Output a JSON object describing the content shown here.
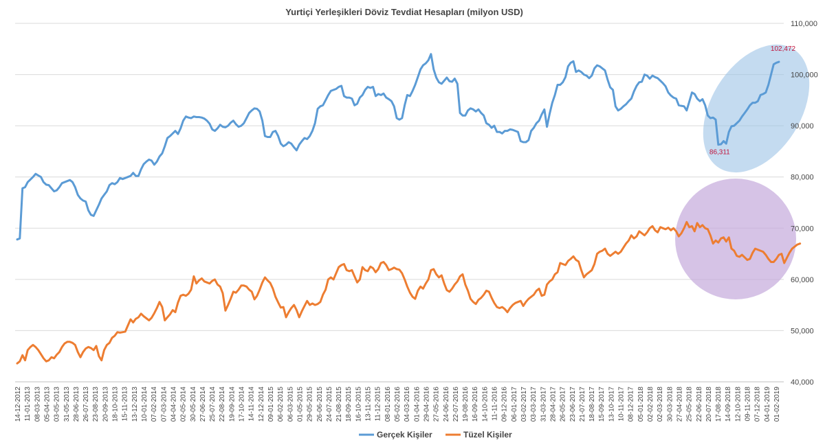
{
  "chart_data": {
    "type": "line",
    "title": "Yurtiçi Yerleşikleri Döviz Tevdiat Hesapları (milyon USD)",
    "xlabel": "",
    "ylabel": "",
    "ylim": [
      40000,
      110000
    ],
    "y_ticks": [
      40000,
      50000,
      60000,
      70000,
      80000,
      90000,
      100000,
      110000
    ],
    "y_tick_labels": [
      "40,000",
      "50,000",
      "60,000",
      "70,000",
      "80,000",
      "90,000",
      "100,000",
      "110,000"
    ],
    "y_axis_side": "right",
    "grid": "horizontal",
    "legend_position": "bottom",
    "x_tick_labels": [
      "14-12-2012",
      "11-01-2013",
      "08-03-2013",
      "05-04-2013",
      "03-05-2013",
      "31-05-2013",
      "28-06-2013",
      "26-07-2013",
      "23-08-2013",
      "20-09-2013",
      "18-10-2013",
      "15-11-2013",
      "13-12-2013",
      "10-01-2014",
      "07-02-2014",
      "07-03-2014",
      "04-04-2014",
      "02-05-2014",
      "30-05-2014",
      "27-06-2014",
      "25-07-2014",
      "22-08-2014",
      "19-09-2014",
      "17-10-2014",
      "14-11-2014",
      "12-12-2014",
      "09-01-2015",
      "06-02-2015",
      "06-03-2015",
      "01-05-2015",
      "29-05-2015",
      "26-06-2015",
      "24-07-2015",
      "21-08-2015",
      "18-09-2015",
      "16-10-2015",
      "13-11-2015",
      "11-12-2015",
      "08-01-2016",
      "05-02-2016",
      "04-03-2016",
      "01-04-2016",
      "29-04-2016",
      "27-05-2016",
      "24-06-2016",
      "22-07-2016",
      "19-08-2016",
      "16-09-2016",
      "14-10-2016",
      "11-11-2016",
      "09-12-2016",
      "06-01-2017",
      "03-02-2017",
      "03-03-2017",
      "31-03-2017",
      "28-04-2017",
      "26-05-2017",
      "23-06-2017",
      "21-07-2017",
      "18-08-2017",
      "15-09-2017",
      "13-10-2017",
      "10-11-2017",
      "08-12-2017",
      "05-01-2018",
      "02-02-2018",
      "02-03-2018",
      "30-03-2018",
      "27-04-2018",
      "25-05-2018",
      "22-06-2018",
      "20-07-2018",
      "17-08-2018",
      "14-09-2018",
      "12-10-2018",
      "09-11-2018",
      "07-12-2018",
      "04-01-2019",
      "01-02-2019"
    ],
    "series": [
      {
        "name": "Gerçek Kişiler",
        "color": "#5b9bd5",
        "values": [
          67800,
          68000,
          77800,
          78000,
          79000,
          79500,
          80000,
          80600,
          80300,
          80000,
          79000,
          78500,
          78400,
          77800,
          77200,
          77400,
          78000,
          78800,
          79000,
          79200,
          79400,
          79000,
          78000,
          76500,
          75800,
          75400,
          75200,
          73500,
          72600,
          72400,
          73500,
          74600,
          75800,
          76500,
          77200,
          78400,
          78800,
          78600,
          79000,
          79800,
          79600,
          79800,
          80000,
          80200,
          80800,
          80200,
          80200,
          81500,
          82500,
          83000,
          83400,
          83200,
          82400,
          83000,
          84000,
          84600,
          86000,
          87600,
          88000,
          88500,
          89000,
          88400,
          89500,
          91000,
          91800,
          91600,
          91500,
          91800,
          91700,
          91700,
          91600,
          91400,
          91000,
          90400,
          89300,
          89000,
          89500,
          90200,
          89800,
          89700,
          90000,
          90600,
          91000,
          90300,
          89800,
          90000,
          90500,
          91500,
          92500,
          93000,
          93400,
          93300,
          92800,
          91000,
          88000,
          87800,
          87800,
          88800,
          89000,
          88000,
          86500,
          86000,
          86300,
          86800,
          86500,
          85800,
          85200,
          86300,
          87000,
          87600,
          87400,
          88000,
          89000,
          90500,
          93300,
          93800,
          94000,
          95000,
          96000,
          96800,
          97000,
          97200,
          97600,
          97800,
          95800,
          95500,
          95500,
          95300,
          94000,
          94300,
          95500,
          96000,
          97000,
          97600,
          97400,
          97600,
          95800,
          96200,
          96000,
          96300,
          95500,
          95200,
          94800,
          93800,
          91500,
          91200,
          91500,
          94000,
          96000,
          95800,
          96800,
          98000,
          99500,
          101000,
          101800,
          102200,
          102800,
          104000,
          101000,
          99400,
          98500,
          98200,
          98800,
          99400,
          98700,
          98600,
          99200,
          98200,
          92500,
          92000,
          92000,
          93000,
          93400,
          93200,
          92800,
          93200,
          92500,
          92000,
          90500,
          90200,
          89600,
          90000,
          88800,
          88800,
          88500,
          89000,
          89000,
          89300,
          89200,
          89000,
          88800,
          87000,
          86800,
          86800,
          87200,
          89000,
          89600,
          90500,
          91000,
          92200,
          93200,
          89800,
          92300,
          94500,
          96000,
          98000,
          98000,
          98500,
          99500,
          101600,
          102300,
          102600,
          100500,
          100800,
          100500,
          100000,
          99800,
          99300,
          99800,
          101200,
          101800,
          101600,
          101200,
          100800,
          99000,
          97500,
          97000,
          93800,
          93000,
          93300,
          93800,
          94200,
          94800,
          95300,
          96700,
          97800,
          98500,
          98600,
          100000,
          99800,
          99200,
          99800,
          99500,
          99300,
          98800,
          98300,
          97700,
          96500,
          95900,
          95500,
          95300,
          94000,
          93900,
          93800,
          93000,
          94700,
          96500,
          96200,
          95300,
          94800,
          95200,
          94000,
          92000,
          91500,
          91600,
          91200,
          86311,
          86400,
          87000,
          86500,
          88800,
          89900,
          90000,
          90500,
          91000,
          91800,
          92500,
          93200,
          94000,
          94500,
          94500,
          94800,
          96000,
          96200,
          96500,
          98000,
          100000,
          102000,
          102300,
          102472
        ]
      },
      {
        "name": "Tüzel Kişiler",
        "color": "#ed7d31",
        "values": [
          43600,
          44000,
          45200,
          44200,
          46200,
          46800,
          47200,
          46800,
          46200,
          45400,
          44600,
          44000,
          44200,
          44800,
          44600,
          45300,
          45800,
          46800,
          47500,
          47800,
          47800,
          47600,
          47200,
          45800,
          44800,
          45800,
          46500,
          46800,
          46600,
          46200,
          47000,
          45000,
          44200,
          46200,
          47200,
          47600,
          48600,
          49000,
          49700,
          49600,
          49700,
          49800,
          51000,
          52200,
          51600,
          52300,
          52600,
          53300,
          52800,
          52400,
          52000,
          52500,
          53400,
          54400,
          55600,
          54600,
          52000,
          52600,
          53200,
          54000,
          53600,
          55500,
          56800,
          57000,
          56800,
          57200,
          58000,
          60600,
          59200,
          59800,
          60200,
          59600,
          59400,
          59200,
          59700,
          60000,
          59000,
          58600,
          57300,
          53900,
          55000,
          56200,
          57600,
          57400,
          58000,
          58800,
          58800,
          58600,
          58000,
          57600,
          56100,
          56800,
          58000,
          59400,
          60400,
          59800,
          59300,
          58200,
          56600,
          55500,
          54500,
          54600,
          52600,
          53600,
          54400,
          55000,
          54000,
          52600,
          53800,
          54800,
          55800,
          55000,
          55300,
          55000,
          55200,
          55600,
          57000,
          58000,
          60000,
          60400,
          60000,
          61200,
          62400,
          62800,
          63000,
          61800,
          61600,
          61800,
          60600,
          59400,
          60000,
          62400,
          61800,
          61600,
          62500,
          62200,
          61400,
          62000,
          63200,
          63400,
          62800,
          61800,
          62000,
          62300,
          62000,
          61900,
          61200,
          60000,
          58600,
          57400,
          56600,
          56200,
          57800,
          58600,
          58200,
          59200,
          60000,
          61800,
          62000,
          61000,
          60400,
          60800,
          59200,
          57900,
          57600,
          58200,
          59000,
          59600,
          60600,
          61000,
          59000,
          57800,
          56200,
          55600,
          55200,
          56000,
          56400,
          57000,
          57800,
          57600,
          56400,
          55400,
          54600,
          54400,
          54600,
          54200,
          53600,
          54400,
          55000,
          55400,
          55600,
          55800,
          54800,
          55600,
          56200,
          56600,
          57000,
          57800,
          58200,
          56800,
          57000,
          59000,
          59600,
          60000,
          61000,
          61400,
          63200,
          63000,
          62800,
          63600,
          64000,
          64500,
          63800,
          63500,
          61800,
          60400,
          61000,
          61400,
          61800,
          63000,
          65000,
          65400,
          65600,
          66000,
          65000,
          64600,
          65000,
          65400,
          65000,
          65400,
          66200,
          67000,
          67600,
          68600,
          68000,
          68400,
          69400,
          69000,
          68600,
          69200,
          70000,
          70400,
          69600,
          69200,
          70200,
          70000,
          69800,
          70100,
          69600,
          70000,
          69400,
          68400,
          69000,
          70000,
          71200,
          70200,
          70400,
          69400,
          71000,
          70200,
          70600,
          70000,
          69800,
          68600,
          67000,
          67600,
          67200,
          68000,
          68200,
          67400,
          68200,
          66000,
          65600,
          64600,
          64400,
          64800,
          64300,
          63800,
          64000,
          65200,
          66000,
          65800,
          65600,
          65400,
          64800,
          64000,
          63400,
          63400,
          64000,
          64800,
          65000,
          63200,
          64200,
          65200,
          66000,
          66400,
          66800,
          67000
        ]
      }
    ],
    "annotations": [
      {
        "label": "86,311",
        "series": "Gerçek Kişiler",
        "value": 86311
      },
      {
        "label": "102,472",
        "series": "Gerçek Kişiler",
        "value": 102472
      }
    ],
    "highlight_ellipses": [
      {
        "series": "Gerçek Kişiler",
        "color": "#9dc3e6"
      },
      {
        "series": "Tüzel Kişiler",
        "color": "#c5a9dc"
      }
    ]
  }
}
